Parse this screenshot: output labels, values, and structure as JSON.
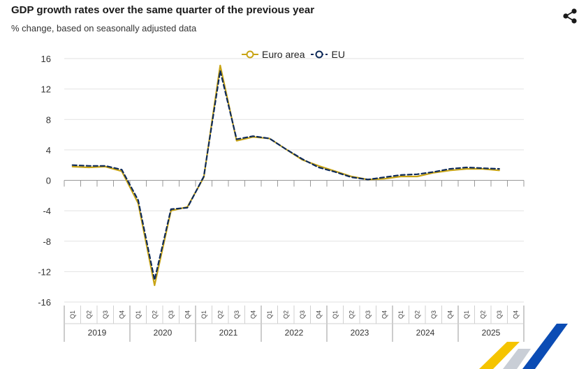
{
  "header": {
    "title": "GDP growth rates over the same quarter of the previous year",
    "subtitle": "% change, based on seasonally adjusted data"
  },
  "share_icon": "share-icon",
  "colors": {
    "euro_area": "#c8a415",
    "eu": "#0e2a59",
    "grid": "#e2e2e2",
    "axis": "#999999"
  },
  "chart_data": {
    "type": "line",
    "title": "GDP growth rates over the same quarter of the previous year",
    "subtitle": "% change, based on seasonally adjusted data",
    "ylim": [
      -16,
      16
    ],
    "yticks": [
      16,
      12,
      8,
      4,
      0,
      -4,
      -8,
      -12,
      -16
    ],
    "ytick_labels": [
      "16",
      "12",
      "8",
      "4",
      "0",
      "-4",
      "-8",
      "-12",
      "-16"
    ],
    "quarters": [
      "Q1",
      "Q2",
      "Q3",
      "Q4"
    ],
    "years": [
      "2019",
      "2020",
      "2021",
      "2022",
      "2023",
      "2024",
      "2025"
    ],
    "legend": {
      "position": "top-center",
      "entries": [
        "Euro area",
        "EU"
      ]
    },
    "series": [
      {
        "name": "Euro area",
        "style": "solid",
        "values": [
          1.8,
          1.7,
          1.8,
          1.2,
          -3.0,
          -13.8,
          -4.0,
          -3.5,
          0.4,
          15.1,
          5.2,
          5.7,
          5.5,
          4.1,
          2.7,
          1.9,
          1.2,
          0.5,
          0.1,
          0.2,
          0.5,
          0.5,
          1.0,
          1.3,
          1.5,
          1.5,
          1.3
        ]
      },
      {
        "name": "EU",
        "style": "dashed",
        "values": [
          2.0,
          1.9,
          1.9,
          1.4,
          -2.6,
          -13.1,
          -3.8,
          -3.6,
          0.5,
          14.4,
          5.4,
          5.8,
          5.5,
          4.1,
          2.8,
          1.7,
          1.1,
          0.4,
          0.1,
          0.4,
          0.7,
          0.8,
          1.1,
          1.5,
          1.7,
          1.6,
          1.5
        ]
      }
    ]
  }
}
